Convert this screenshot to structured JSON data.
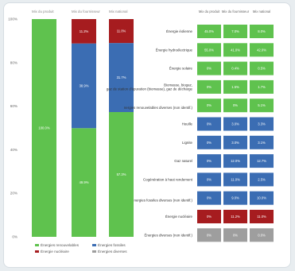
{
  "colors": {
    "renewable": "#5fc24e",
    "fossil": "#3b6db3",
    "nuclear": "#a61c1f",
    "other": "#9e9e9e"
  },
  "chart_data": [
    {
      "type": "bar",
      "stacked": true,
      "categories": [
        "Mix du produit",
        "Mix du fournisseur",
        "Mix national"
      ],
      "yticks": [
        "0%",
        "20%",
        "40%",
        "60%",
        "80%",
        "100%"
      ],
      "ylim": [
        0,
        100
      ],
      "series": [
        {
          "name": "Énergies renouvelables",
          "key": "renewable",
          "values": [
            100,
            49.9,
            57.3
          ],
          "labels": [
            "100.0%",
            "49.9%",
            "57.3%"
          ]
        },
        {
          "name": "Énergies fossiles",
          "key": "fossil",
          "values": [
            0,
            38.9,
            31.7
          ],
          "labels": [
            "",
            "38.9%",
            "31.7%"
          ]
        },
        {
          "name": "Énergie nucléaire",
          "key": "nuclear",
          "values": [
            0,
            11.2,
            11.0
          ],
          "labels": [
            "",
            "11.2%",
            "11.0%"
          ]
        },
        {
          "name": "Énergies diverses",
          "key": "other",
          "values": [
            0,
            0,
            0
          ],
          "labels": [
            "",
            "",
            ""
          ]
        }
      ]
    },
    {
      "type": "table",
      "columns": [
        "Mix du produit",
        "Mix du fournisseur",
        "Mix national"
      ],
      "rows": [
        {
          "label": "Énergie éolienne",
          "group": "renewable",
          "values": [
            "45.0%",
            "7.0%",
            "8.0%"
          ]
        },
        {
          "label": "Énergie hydroélectrique",
          "group": "renewable",
          "values": [
            "55.0%",
            "41.0%",
            "42.0%"
          ]
        },
        {
          "label": "Énergie solaire",
          "group": "renewable",
          "values": [
            "0%",
            "0.4%",
            "0.5%"
          ]
        },
        {
          "label": "Biomasse, biogaz, gaz de station d'épuration (biomasse), gaz de décharge",
          "group": "renewable",
          "values": [
            "0%",
            "1.5%",
            "1.7%"
          ]
        },
        {
          "label": "Énergies renouvelables diverses (non identif.)",
          "group": "renewable",
          "values": [
            "0%",
            "0%",
            "5.1%"
          ]
        },
        {
          "label": "Houille",
          "group": "fossil",
          "values": [
            "0%",
            "3.0%",
            "3.3%"
          ]
        },
        {
          "label": "Lignite",
          "group": "fossil",
          "values": [
            "0%",
            "3.0%",
            "3.1%"
          ]
        },
        {
          "label": "Gaz naturel",
          "group": "fossil",
          "values": [
            "0%",
            "12.0%",
            "12.7%"
          ]
        },
        {
          "label": "Cogénération à haut rendement",
          "group": "fossil",
          "values": [
            "0%",
            "11.0%",
            "2.5%"
          ]
        },
        {
          "label": "Énergies fossiles diverses (non identif.)",
          "group": "fossil",
          "values": [
            "0%",
            "9.0%",
            "10.0%"
          ]
        },
        {
          "label": "Énergie nucléaire",
          "group": "nuclear",
          "values": [
            "0%",
            "11.2%",
            "11.0%"
          ]
        },
        {
          "label": "Énergies diverses (non identif.)",
          "group": "other",
          "values": [
            "0%",
            "0%",
            "0.0%"
          ]
        }
      ]
    }
  ]
}
